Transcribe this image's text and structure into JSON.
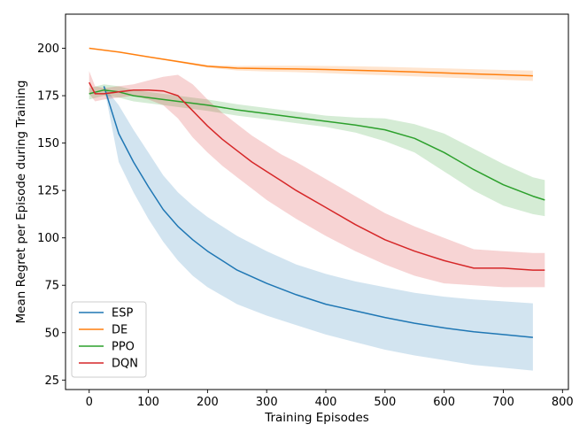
{
  "chart_data": {
    "type": "line",
    "title": "",
    "xlabel": "Training Episodes",
    "ylabel": "Mean Regret per Episode during Training",
    "xlim": [
      -40,
      810
    ],
    "ylim": [
      20,
      218
    ],
    "xticks": [
      0,
      100,
      200,
      300,
      400,
      500,
      600,
      700,
      800
    ],
    "yticks": [
      25,
      50,
      75,
      100,
      125,
      150,
      175,
      200
    ],
    "grid": false,
    "legend_position": "lower-left",
    "series": [
      {
        "name": "ESP",
        "color": "#1f77b4",
        "x": [
          25,
          50,
          75,
          100,
          125,
          150,
          175,
          200,
          250,
          300,
          350,
          400,
          450,
          500,
          550,
          600,
          650,
          700,
          750
        ],
        "y": [
          180,
          155,
          140,
          127,
          115,
          106,
          99,
          93,
          83,
          76,
          70,
          65,
          61.5,
          58,
          55,
          52.5,
          50.5,
          49,
          47.5
        ],
        "lower": [
          180,
          140,
          124,
          110,
          98,
          88,
          80,
          74,
          65,
          59,
          54,
          49,
          45,
          41,
          38,
          35.5,
          33,
          31.5,
          30
        ],
        "upper": [
          180,
          170,
          157,
          145,
          133,
          124,
          117,
          111,
          101,
          93,
          86,
          81,
          77,
          74,
          71,
          69,
          67.5,
          66.5,
          65.5
        ]
      },
      {
        "name": "DE",
        "color": "#ff7f0e",
        "x": [
          0,
          50,
          100,
          150,
          200,
          250,
          300,
          350,
          400,
          450,
          500,
          550,
          600,
          650,
          700,
          750
        ],
        "y": [
          200,
          198,
          195.5,
          193,
          190.5,
          189.5,
          189.3,
          189.1,
          188.8,
          188.4,
          188,
          187.5,
          187,
          186.5,
          186,
          185.5
        ],
        "lower": [
          200,
          198,
          195.3,
          192.5,
          189.8,
          188.3,
          187.8,
          187.4,
          186.9,
          186.3,
          185.8,
          185.2,
          184.6,
          184,
          183.4,
          182.8
        ],
        "upper": [
          200,
          198,
          195.7,
          193.5,
          191.2,
          190.7,
          190.8,
          190.8,
          190.7,
          190.5,
          190.2,
          189.8,
          189.4,
          189,
          188.6,
          188.2
        ]
      },
      {
        "name": "PPO",
        "color": "#2ca02c",
        "x": [
          0,
          25,
          50,
          75,
          100,
          150,
          200,
          250,
          300,
          350,
          400,
          450,
          500,
          550,
          600,
          650,
          700,
          750,
          770
        ],
        "y": [
          176,
          178,
          177,
          175,
          174,
          172,
          170,
          167.5,
          165.5,
          163.5,
          161.5,
          159.5,
          157,
          152.5,
          145,
          136,
          128,
          122,
          120
        ],
        "lower": [
          173,
          175,
          174,
          172,
          171,
          169,
          167,
          164.5,
          162.5,
          160.5,
          158.5,
          155.5,
          151,
          145,
          135,
          125,
          117,
          112.5,
          111.5
        ],
        "upper": [
          179,
          181,
          180,
          178,
          177,
          175,
          173,
          170.5,
          168.5,
          166.5,
          164.5,
          163.5,
          163,
          160,
          155,
          147,
          139,
          132,
          130.5
        ]
      },
      {
        "name": "DQN",
        "color": "#d62728",
        "x": [
          0,
          10,
          25,
          50,
          75,
          100,
          125,
          150,
          175,
          200,
          225,
          250,
          275,
          300,
          325,
          350,
          400,
          450,
          500,
          550,
          600,
          650,
          700,
          750,
          770
        ],
        "y": [
          182,
          176,
          176,
          177,
          178,
          178,
          177.5,
          175,
          167,
          159,
          152,
          146,
          140,
          135,
          130,
          125,
          116,
          107,
          99,
          93,
          88,
          84,
          84,
          83,
          83
        ],
        "lower": [
          176,
          172,
          173,
          174,
          175,
          173,
          170,
          163,
          153,
          145,
          138,
          132,
          126,
          120,
          115,
          110,
          101,
          93,
          86,
          80,
          76,
          75,
          74,
          74,
          74
        ],
        "upper": [
          188,
          180,
          179,
          180,
          181,
          183,
          185,
          186,
          181,
          173,
          166,
          160,
          154,
          149,
          144,
          140,
          131,
          122,
          113,
          106,
          100,
          94,
          93,
          92,
          92
        ]
      }
    ]
  }
}
